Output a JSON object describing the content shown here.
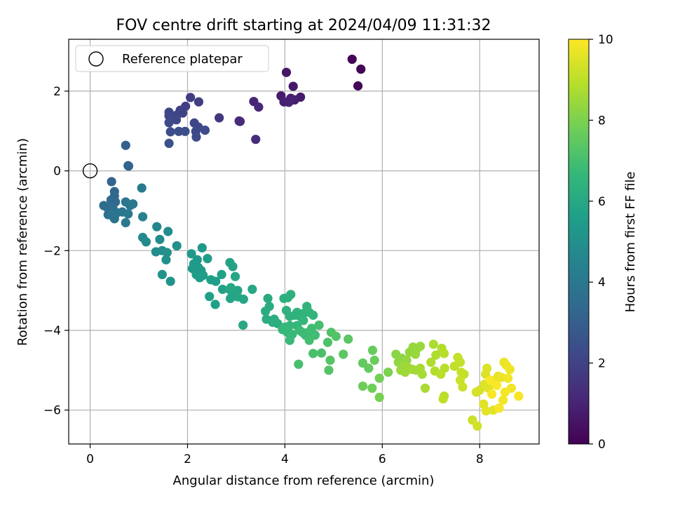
{
  "chart_data": {
    "type": "scatter",
    "title": "FOV centre drift starting at 2024/04/09 11:31:32",
    "xlabel": "Angular distance from reference (arcmin)",
    "ylabel": "Rotation from reference (arcmin)",
    "xlim": [
      -0.44,
      9.22
    ],
    "ylim": [
      -6.85,
      3.3
    ],
    "xticks": [
      0,
      2,
      4,
      6,
      8
    ],
    "yticks": [
      -6,
      -4,
      -2,
      0,
      2
    ],
    "xtick_labels": [
      "0",
      "2",
      "4",
      "6",
      "8"
    ],
    "ytick_labels": [
      "−6",
      "−4",
      "−2",
      "0",
      "2"
    ],
    "grid": true,
    "colormap": "viridis",
    "colorbar": {
      "label": "Hours from first FF file",
      "range": [
        0,
        10
      ],
      "ticks": [
        0,
        2,
        4,
        6,
        8,
        10
      ],
      "tick_labels": [
        "0",
        "2",
        "4",
        "6",
        "8",
        "10"
      ]
    },
    "legend": {
      "position": "top-left",
      "entries": [
        {
          "label": "Reference platepar",
          "marker": "open-circle"
        }
      ]
    },
    "reference_point": {
      "x": 0,
      "y": 0
    },
    "points": [
      {
        "x": 5.38,
        "y": 2.8,
        "h": 0.05
      },
      {
        "x": 5.56,
        "y": 2.55,
        "h": 0.1
      },
      {
        "x": 5.5,
        "y": 2.13,
        "h": 0.15
      },
      {
        "x": 4.03,
        "y": 2.47,
        "h": 0.6
      },
      {
        "x": 4.17,
        "y": 2.12,
        "h": 0.65
      },
      {
        "x": 3.92,
        "y": 1.88,
        "h": 0.7
      },
      {
        "x": 4.32,
        "y": 1.85,
        "h": 0.75
      },
      {
        "x": 4.12,
        "y": 1.82,
        "h": 0.8
      },
      {
        "x": 4.2,
        "y": 1.78,
        "h": 0.85
      },
      {
        "x": 3.98,
        "y": 1.73,
        "h": 0.9
      },
      {
        "x": 4.08,
        "y": 1.72,
        "h": 0.95
      },
      {
        "x": 3.36,
        "y": 1.74,
        "h": 1.05
      },
      {
        "x": 3.46,
        "y": 1.6,
        "h": 1.1
      },
      {
        "x": 3.06,
        "y": 1.25,
        "h": 1.2
      },
      {
        "x": 3.08,
        "y": 1.24,
        "h": 1.25
      },
      {
        "x": 3.4,
        "y": 0.79,
        "h": 1.3
      },
      {
        "x": 2.65,
        "y": 1.33,
        "h": 1.6
      },
      {
        "x": 2.06,
        "y": 1.84,
        "h": 1.8
      },
      {
        "x": 2.23,
        "y": 1.73,
        "h": 1.85
      },
      {
        "x": 1.96,
        "y": 1.62,
        "h": 1.9
      },
      {
        "x": 1.85,
        "y": 1.52,
        "h": 1.95
      },
      {
        "x": 1.9,
        "y": 1.45,
        "h": 2.0
      },
      {
        "x": 1.78,
        "y": 1.4,
        "h": 2.05
      },
      {
        "x": 1.62,
        "y": 1.47,
        "h": 2.1
      },
      {
        "x": 1.62,
        "y": 1.38,
        "h": 2.15
      },
      {
        "x": 1.77,
        "y": 1.28,
        "h": 2.2
      },
      {
        "x": 1.62,
        "y": 1.21,
        "h": 2.25
      },
      {
        "x": 2.14,
        "y": 1.2,
        "h": 2.1
      },
      {
        "x": 2.22,
        "y": 1.1,
        "h": 2.15
      },
      {
        "x": 2.17,
        "y": 0.99,
        "h": 2.2
      },
      {
        "x": 2.36,
        "y": 1.02,
        "h": 2.25
      },
      {
        "x": 2.18,
        "y": 0.85,
        "h": 2.3
      },
      {
        "x": 1.65,
        "y": 0.98,
        "h": 2.35
      },
      {
        "x": 1.82,
        "y": 0.99,
        "h": 2.4
      },
      {
        "x": 1.95,
        "y": 0.99,
        "h": 2.45
      },
      {
        "x": 1.62,
        "y": 0.69,
        "h": 2.5
      },
      {
        "x": 0.73,
        "y": 0.64,
        "h": 3.05
      },
      {
        "x": 0.78,
        "y": 0.13,
        "h": 3.1
      },
      {
        "x": 0.79,
        "y": 0.12,
        "h": 3.15
      },
      {
        "x": 0.44,
        "y": -0.27,
        "h": 3.2
      },
      {
        "x": 0.5,
        "y": -0.52,
        "h": 3.3
      },
      {
        "x": 0.5,
        "y": -0.63,
        "h": 3.35
      },
      {
        "x": 0.43,
        "y": -0.73,
        "h": 3.4
      },
      {
        "x": 0.52,
        "y": -0.78,
        "h": 3.45
      },
      {
        "x": 0.28,
        "y": -0.87,
        "h": 3.5
      },
      {
        "x": 0.35,
        "y": -0.92,
        "h": 3.55
      },
      {
        "x": 0.4,
        "y": -1.0,
        "h": 3.6
      },
      {
        "x": 0.47,
        "y": -0.95,
        "h": 3.65
      },
      {
        "x": 0.37,
        "y": -1.1,
        "h": 3.7
      },
      {
        "x": 0.45,
        "y": -1.12,
        "h": 3.75
      },
      {
        "x": 0.5,
        "y": -1.2,
        "h": 3.8
      },
      {
        "x": 0.55,
        "y": -1.05,
        "h": 3.85
      },
      {
        "x": 0.66,
        "y": -1.03,
        "h": 3.9
      },
      {
        "x": 0.73,
        "y": -0.78,
        "h": 3.95
      },
      {
        "x": 0.82,
        "y": -0.87,
        "h": 3.95
      },
      {
        "x": 0.88,
        "y": -0.83,
        "h": 4.0
      },
      {
        "x": 0.78,
        "y": -1.08,
        "h": 4.0
      },
      {
        "x": 0.73,
        "y": -1.3,
        "h": 4.05
      },
      {
        "x": 1.06,
        "y": -0.43,
        "h": 4.1
      },
      {
        "x": 1.08,
        "y": -1.15,
        "h": 4.4
      },
      {
        "x": 1.37,
        "y": -1.4,
        "h": 4.6
      },
      {
        "x": 1.08,
        "y": -1.67,
        "h": 4.7
      },
      {
        "x": 1.15,
        "y": -1.78,
        "h": 4.75
      },
      {
        "x": 1.43,
        "y": -1.72,
        "h": 4.8
      },
      {
        "x": 1.6,
        "y": -1.52,
        "h": 4.85
      },
      {
        "x": 1.35,
        "y": -2.03,
        "h": 4.9
      },
      {
        "x": 1.48,
        "y": -2.0,
        "h": 4.95
      },
      {
        "x": 1.58,
        "y": -2.05,
        "h": 5.0
      },
      {
        "x": 1.56,
        "y": -2.23,
        "h": 5.0
      },
      {
        "x": 1.78,
        "y": -1.88,
        "h": 5.05
      },
      {
        "x": 1.48,
        "y": -2.6,
        "h": 5.1
      },
      {
        "x": 1.65,
        "y": -2.77,
        "h": 5.1
      },
      {
        "x": 2.08,
        "y": -2.08,
        "h": 5.3
      },
      {
        "x": 2.2,
        "y": -2.23,
        "h": 5.35
      },
      {
        "x": 2.3,
        "y": -1.93,
        "h": 5.35
      },
      {
        "x": 2.13,
        "y": -2.33,
        "h": 5.4
      },
      {
        "x": 2.1,
        "y": -2.45,
        "h": 5.4
      },
      {
        "x": 2.22,
        "y": -2.42,
        "h": 5.45
      },
      {
        "x": 2.28,
        "y": -2.5,
        "h": 5.45
      },
      {
        "x": 2.18,
        "y": -2.6,
        "h": 5.5
      },
      {
        "x": 2.32,
        "y": -2.62,
        "h": 5.5
      },
      {
        "x": 2.41,
        "y": -2.2,
        "h": 5.5
      },
      {
        "x": 2.25,
        "y": -2.68,
        "h": 5.55
      },
      {
        "x": 2.48,
        "y": -2.73,
        "h": 5.6
      },
      {
        "x": 2.58,
        "y": -2.77,
        "h": 5.6
      },
      {
        "x": 2.45,
        "y": -3.15,
        "h": 5.65
      },
      {
        "x": 2.57,
        "y": -3.35,
        "h": 5.65
      },
      {
        "x": 2.72,
        "y": -2.97,
        "h": 5.7
      },
      {
        "x": 2.7,
        "y": -2.6,
        "h": 5.7
      },
      {
        "x": 2.87,
        "y": -2.3,
        "h": 5.75
      },
      {
        "x": 2.93,
        "y": -2.4,
        "h": 5.75
      },
      {
        "x": 2.87,
        "y": -2.98,
        "h": 5.8
      },
      {
        "x": 2.93,
        "y": -3.06,
        "h": 5.8
      },
      {
        "x": 3.03,
        "y": -3.0,
        "h": 5.85
      },
      {
        "x": 2.88,
        "y": -3.2,
        "h": 5.85
      },
      {
        "x": 3.03,
        "y": -3.16,
        "h": 5.9
      },
      {
        "x": 3.15,
        "y": -3.22,
        "h": 5.9
      },
      {
        "x": 3.14,
        "y": -3.87,
        "h": 5.95
      },
      {
        "x": 3.33,
        "y": -2.97,
        "h": 5.95
      },
      {
        "x": 2.98,
        "y": -2.65,
        "h": 5.9
      },
      {
        "x": 2.89,
        "y": -2.93,
        "h": 5.95
      },
      {
        "x": 3.65,
        "y": -3.2,
        "h": 6.1
      },
      {
        "x": 3.6,
        "y": -3.52,
        "h": 6.15
      },
      {
        "x": 3.68,
        "y": -3.4,
        "h": 6.15
      },
      {
        "x": 3.62,
        "y": -3.72,
        "h": 6.2
      },
      {
        "x": 3.78,
        "y": -3.72,
        "h": 6.2
      },
      {
        "x": 3.85,
        "y": -3.83,
        "h": 6.25
      },
      {
        "x": 3.75,
        "y": -3.8,
        "h": 6.25
      },
      {
        "x": 3.98,
        "y": -3.2,
        "h": 6.3
      },
      {
        "x": 4.06,
        "y": -3.18,
        "h": 6.3
      },
      {
        "x": 4.12,
        "y": -3.1,
        "h": 6.35
      },
      {
        "x": 4.03,
        "y": -3.5,
        "h": 6.35
      },
      {
        "x": 4.1,
        "y": -3.65,
        "h": 6.4
      },
      {
        "x": 4.2,
        "y": -3.62,
        "h": 6.4
      },
      {
        "x": 4.25,
        "y": -3.55,
        "h": 6.45
      },
      {
        "x": 4.31,
        "y": -3.65,
        "h": 6.45
      },
      {
        "x": 4.37,
        "y": -3.58,
        "h": 6.5
      },
      {
        "x": 4.45,
        "y": -3.4,
        "h": 6.5
      },
      {
        "x": 4.5,
        "y": -3.55,
        "h": 6.55
      },
      {
        "x": 4.58,
        "y": -3.62,
        "h": 6.55
      },
      {
        "x": 4.38,
        "y": -3.75,
        "h": 6.6
      },
      {
        "x": 4.25,
        "y": -3.88,
        "h": 6.6
      },
      {
        "x": 4.1,
        "y": -3.88,
        "h": 6.65
      },
      {
        "x": 4.0,
        "y": -3.92,
        "h": 6.65
      },
      {
        "x": 3.95,
        "y": -3.98,
        "h": 6.7
      },
      {
        "x": 4.05,
        "y": -4.05,
        "h": 6.7
      },
      {
        "x": 4.15,
        "y": -4.1,
        "h": 6.75
      },
      {
        "x": 4.1,
        "y": -4.25,
        "h": 6.75
      },
      {
        "x": 4.3,
        "y": -4.0,
        "h": 6.8
      },
      {
        "x": 4.36,
        "y": -4.05,
        "h": 6.8
      },
      {
        "x": 4.42,
        "y": -4.12,
        "h": 6.85
      },
      {
        "x": 4.48,
        "y": -4.05,
        "h": 6.85
      },
      {
        "x": 4.55,
        "y": -3.95,
        "h": 6.9
      },
      {
        "x": 4.62,
        "y": -4.12,
        "h": 6.9
      },
      {
        "x": 4.7,
        "y": -3.87,
        "h": 6.95
      },
      {
        "x": 4.5,
        "y": -4.25,
        "h": 6.95
      },
      {
        "x": 4.28,
        "y": -4.85,
        "h": 7.0
      },
      {
        "x": 4.58,
        "y": -4.58,
        "h": 7.05
      },
      {
        "x": 4.75,
        "y": -4.57,
        "h": 7.1
      },
      {
        "x": 4.88,
        "y": -4.3,
        "h": 7.15
      },
      {
        "x": 4.95,
        "y": -4.05,
        "h": 7.2
      },
      {
        "x": 5.05,
        "y": -4.15,
        "h": 7.25
      },
      {
        "x": 4.93,
        "y": -4.75,
        "h": 7.3
      },
      {
        "x": 4.9,
        "y": -5.0,
        "h": 7.3
      },
      {
        "x": 5.3,
        "y": -4.22,
        "h": 7.4
      },
      {
        "x": 5.2,
        "y": -4.6,
        "h": 7.45
      },
      {
        "x": 5.6,
        "y": -4.82,
        "h": 7.55
      },
      {
        "x": 5.72,
        "y": -4.95,
        "h": 7.6
      },
      {
        "x": 5.8,
        "y": -4.5,
        "h": 7.65
      },
      {
        "x": 5.84,
        "y": -4.75,
        "h": 7.7
      },
      {
        "x": 5.6,
        "y": -5.4,
        "h": 7.75
      },
      {
        "x": 5.79,
        "y": -5.45,
        "h": 7.8
      },
      {
        "x": 5.94,
        "y": -5.2,
        "h": 7.85
      },
      {
        "x": 5.94,
        "y": -5.68,
        "h": 7.9
      },
      {
        "x": 6.12,
        "y": -5.05,
        "h": 8.0
      },
      {
        "x": 6.28,
        "y": -4.6,
        "h": 8.2
      },
      {
        "x": 6.4,
        "y": -4.7,
        "h": 8.25
      },
      {
        "x": 6.33,
        "y": -4.8,
        "h": 8.3
      },
      {
        "x": 6.5,
        "y": -4.75,
        "h": 8.35
      },
      {
        "x": 6.56,
        "y": -4.55,
        "h": 8.35
      },
      {
        "x": 6.63,
        "y": -4.42,
        "h": 8.4
      },
      {
        "x": 6.72,
        "y": -4.45,
        "h": 8.4
      },
      {
        "x": 6.78,
        "y": -4.4,
        "h": 8.45
      },
      {
        "x": 6.68,
        "y": -4.6,
        "h": 8.45
      },
      {
        "x": 6.45,
        "y": -4.88,
        "h": 8.5
      },
      {
        "x": 6.38,
        "y": -5.0,
        "h": 8.5
      },
      {
        "x": 6.47,
        "y": -5.05,
        "h": 8.55
      },
      {
        "x": 6.55,
        "y": -4.95,
        "h": 8.55
      },
      {
        "x": 6.62,
        "y": -4.98,
        "h": 8.6
      },
      {
        "x": 6.7,
        "y": -5.0,
        "h": 8.6
      },
      {
        "x": 6.78,
        "y": -4.95,
        "h": 8.65
      },
      {
        "x": 6.82,
        "y": -5.1,
        "h": 8.65
      },
      {
        "x": 6.88,
        "y": -5.45,
        "h": 8.7
      },
      {
        "x": 7.05,
        "y": -4.35,
        "h": 8.75
      },
      {
        "x": 7.1,
        "y": -4.62,
        "h": 8.8
      },
      {
        "x": 7.0,
        "y": -4.8,
        "h": 8.8
      },
      {
        "x": 7.08,
        "y": -5.02,
        "h": 8.85
      },
      {
        "x": 7.22,
        "y": -4.45,
        "h": 8.85
      },
      {
        "x": 7.27,
        "y": -4.58,
        "h": 8.9
      },
      {
        "x": 7.28,
        "y": -4.95,
        "h": 8.9
      },
      {
        "x": 7.2,
        "y": -5.1,
        "h": 8.95
      },
      {
        "x": 7.27,
        "y": -5.65,
        "h": 8.95
      },
      {
        "x": 7.25,
        "y": -5.72,
        "h": 9.0
      },
      {
        "x": 7.48,
        "y": -4.9,
        "h": 9.05
      },
      {
        "x": 7.55,
        "y": -4.68,
        "h": 9.1
      },
      {
        "x": 7.6,
        "y": -4.8,
        "h": 9.1
      },
      {
        "x": 7.62,
        "y": -5.05,
        "h": 9.15
      },
      {
        "x": 7.68,
        "y": -5.1,
        "h": 9.15
      },
      {
        "x": 7.6,
        "y": -5.25,
        "h": 9.2
      },
      {
        "x": 7.65,
        "y": -5.42,
        "h": 9.2
      },
      {
        "x": 7.85,
        "y": -6.25,
        "h": 9.25
      },
      {
        "x": 7.95,
        "y": -6.4,
        "h": 9.3
      },
      {
        "x": 7.93,
        "y": -5.55,
        "h": 9.35
      },
      {
        "x": 8.0,
        "y": -5.5,
        "h": 9.4
      },
      {
        "x": 8.12,
        "y": -5.1,
        "h": 9.45
      },
      {
        "x": 8.15,
        "y": -4.95,
        "h": 9.5
      },
      {
        "x": 8.1,
        "y": -5.35,
        "h": 9.5
      },
      {
        "x": 8.18,
        "y": -5.45,
        "h": 9.55
      },
      {
        "x": 8.08,
        "y": -5.85,
        "h": 9.55
      },
      {
        "x": 8.13,
        "y": -6.02,
        "h": 9.6
      },
      {
        "x": 8.28,
        "y": -6.0,
        "h": 9.6
      },
      {
        "x": 8.3,
        "y": -5.25,
        "h": 9.65
      },
      {
        "x": 8.38,
        "y": -5.15,
        "h": 9.65
      },
      {
        "x": 8.45,
        "y": -5.18,
        "h": 9.7
      },
      {
        "x": 8.5,
        "y": -4.8,
        "h": 9.7
      },
      {
        "x": 8.55,
        "y": -4.88,
        "h": 9.75
      },
      {
        "x": 8.62,
        "y": -4.98,
        "h": 9.75
      },
      {
        "x": 8.58,
        "y": -5.2,
        "h": 9.8
      },
      {
        "x": 8.65,
        "y": -5.45,
        "h": 9.8
      },
      {
        "x": 8.52,
        "y": -5.55,
        "h": 9.85
      },
      {
        "x": 8.48,
        "y": -5.75,
        "h": 9.85
      },
      {
        "x": 8.4,
        "y": -5.95,
        "h": 9.9
      },
      {
        "x": 8.8,
        "y": -5.65,
        "h": 9.9
      },
      {
        "x": 8.35,
        "y": -5.38,
        "h": 9.95
      },
      {
        "x": 8.25,
        "y": -5.6,
        "h": 9.95
      },
      {
        "x": 8.22,
        "y": -5.25,
        "h": 9.95
      }
    ]
  }
}
